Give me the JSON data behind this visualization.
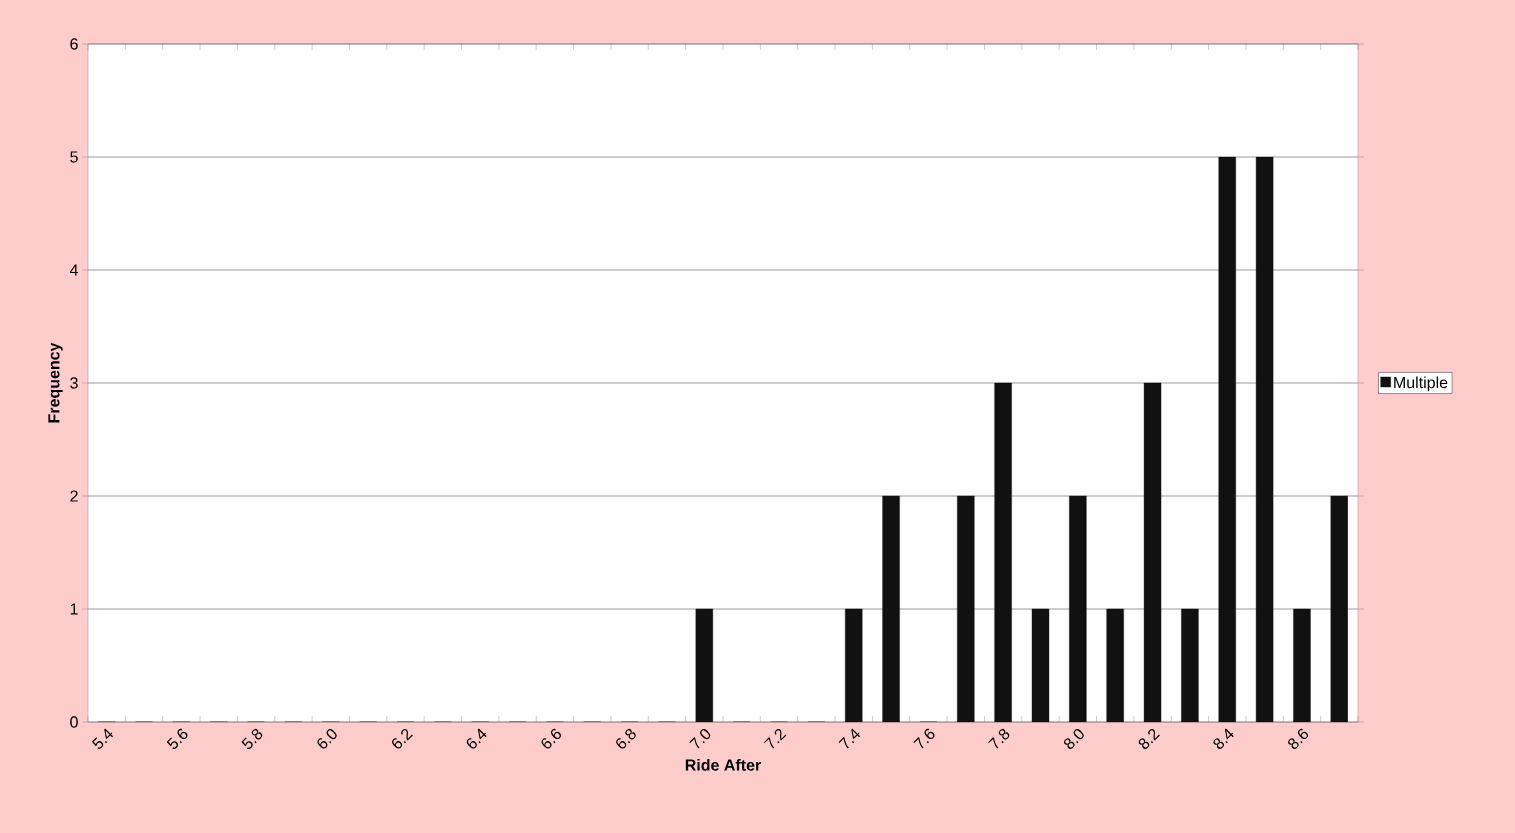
{
  "chart_data": {
    "type": "bar",
    "xlabel": "Ride After",
    "ylabel": "Frequency",
    "categories": [
      "5.4",
      null,
      "5.6",
      null,
      "5.8",
      null,
      "6.0",
      null,
      "6.2",
      null,
      "6.4",
      null,
      "6.6",
      null,
      "6.8",
      null,
      "7.0",
      null,
      "7.2",
      null,
      "7.4",
      null,
      "7.6",
      null,
      "7.8",
      null,
      "8.0",
      null,
      "8.2",
      null,
      "8.4",
      null,
      "8.6",
      null
    ],
    "series": [
      {
        "name": "Multiple",
        "color": "#111111",
        "values": [
          0,
          0,
          0,
          0,
          0,
          0,
          0,
          0,
          0,
          0,
          0,
          0,
          0,
          0,
          0,
          0,
          1,
          0,
          0,
          0,
          1,
          2,
          0,
          2,
          3,
          1,
          2,
          1,
          3,
          1,
          5,
          5,
          1,
          2
        ]
      }
    ],
    "ylim": [
      0,
      6
    ],
    "yticks": [
      0,
      1,
      2,
      3,
      4,
      5,
      6
    ],
    "grid": "y",
    "legend": "right"
  }
}
